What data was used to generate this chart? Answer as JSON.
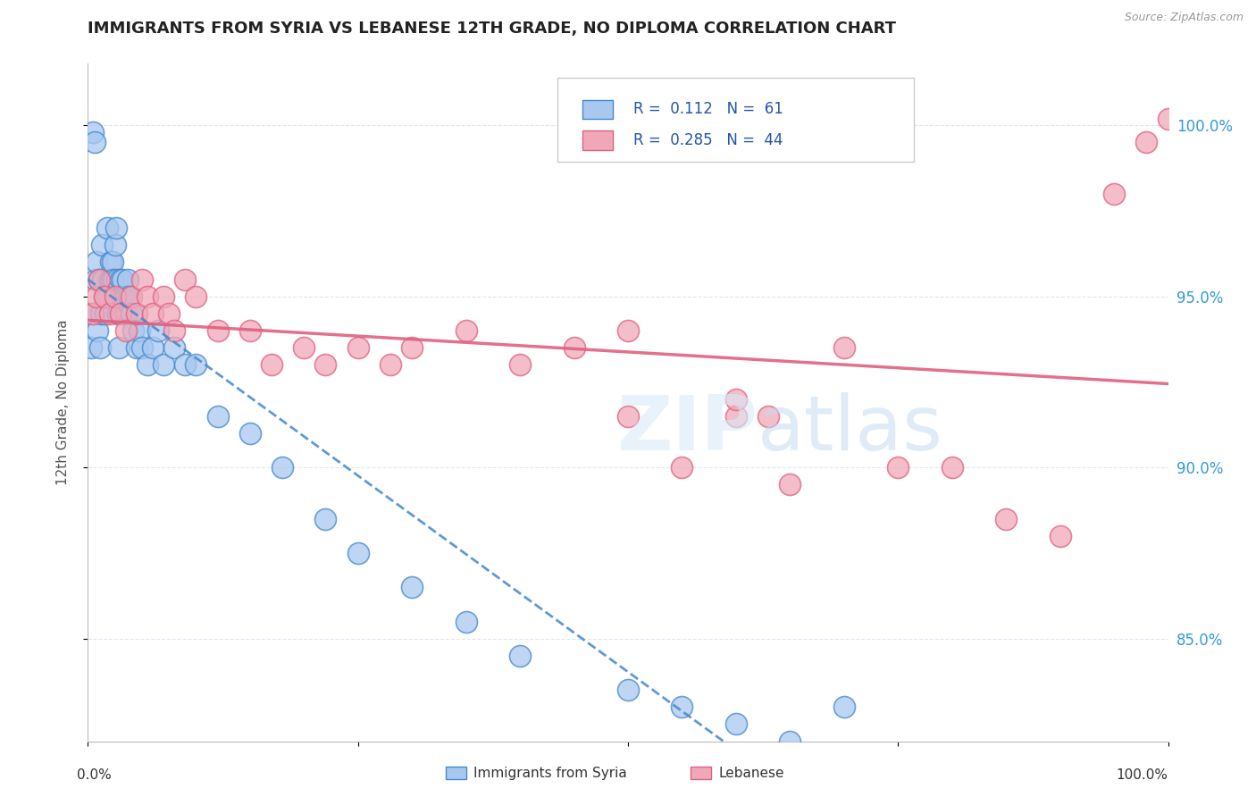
{
  "title": "IMMIGRANTS FROM SYRIA VS LEBANESE 12TH GRADE, NO DIPLOMA CORRELATION CHART",
  "source": "Source: ZipAtlas.com",
  "ylabel": "12th Grade, No Diploma",
  "legend_label_1": "Immigrants from Syria",
  "legend_label_2": "Lebanese",
  "r1": 0.112,
  "n1": 61,
  "r2": 0.285,
  "n2": 44,
  "color_syria": "#A8C8F0",
  "color_lebanon": "#F0A8B8",
  "color_syria_line": "#4488CC",
  "color_lebanon_line": "#E06080",
  "xlim": [
    0.0,
    100.0
  ],
  "ylim": [
    82.0,
    101.5
  ],
  "ytick_values": [
    85.0,
    90.0,
    95.0,
    100.0
  ],
  "syria_x": [
    0.3,
    0.4,
    0.5,
    0.6,
    0.7,
    0.8,
    0.9,
    1.0,
    1.1,
    1.2,
    1.3,
    1.4,
    1.5,
    1.6,
    1.7,
    1.8,
    1.9,
    2.0,
    2.1,
    2.2,
    2.3,
    2.4,
    2.5,
    2.6,
    2.7,
    2.8,
    2.9,
    3.0,
    3.1,
    3.2,
    3.3,
    3.4,
    3.5,
    3.6,
    3.7,
    3.8,
    4.0,
    4.2,
    4.5,
    4.8,
    5.0,
    5.5,
    6.0,
    6.5,
    7.0,
    8.0,
    9.0,
    10.0,
    12.0,
    15.0,
    18.0,
    22.0,
    25.0,
    30.0,
    35.0,
    40.0,
    50.0,
    55.0,
    60.0,
    65.0,
    70.0
  ],
  "syria_y": [
    93.5,
    94.5,
    99.8,
    99.5,
    95.5,
    96.0,
    94.0,
    95.5,
    93.5,
    94.5,
    96.5,
    95.5,
    95.0,
    94.5,
    95.0,
    97.0,
    95.0,
    95.5,
    96.0,
    95.5,
    96.0,
    95.5,
    96.5,
    97.0,
    95.5,
    94.5,
    93.5,
    95.5,
    95.0,
    95.5,
    95.0,
    94.5,
    95.0,
    94.5,
    95.5,
    95.0,
    94.5,
    94.0,
    93.5,
    94.0,
    93.5,
    93.0,
    93.5,
    94.0,
    93.0,
    93.5,
    93.0,
    93.0,
    91.5,
    91.0,
    90.0,
    88.5,
    87.5,
    86.5,
    85.5,
    84.5,
    83.5,
    83.0,
    82.5,
    82.0,
    83.0
  ],
  "lebanon_x": [
    0.5,
    0.8,
    1.0,
    1.5,
    2.0,
    2.5,
    3.0,
    3.5,
    4.0,
    4.5,
    5.0,
    5.5,
    6.0,
    7.0,
    7.5,
    8.0,
    9.0,
    10.0,
    12.0,
    15.0,
    17.0,
    20.0,
    22.0,
    25.0,
    28.0,
    30.0,
    35.0,
    40.0,
    45.0,
    50.0,
    55.0,
    60.0,
    65.0,
    70.0,
    75.0,
    80.0,
    85.0,
    90.0,
    95.0,
    98.0,
    100.0,
    50.0,
    60.0,
    63.0
  ],
  "lebanon_y": [
    94.5,
    95.0,
    95.5,
    95.0,
    94.5,
    95.0,
    94.5,
    94.0,
    95.0,
    94.5,
    95.5,
    95.0,
    94.5,
    95.0,
    94.5,
    94.0,
    95.5,
    95.0,
    94.0,
    94.0,
    93.0,
    93.5,
    93.0,
    93.5,
    93.0,
    93.5,
    94.0,
    93.0,
    93.5,
    94.0,
    90.0,
    91.5,
    89.5,
    93.5,
    90.0,
    90.0,
    88.5,
    88.0,
    98.0,
    99.5,
    100.2,
    91.5,
    92.0,
    91.5
  ]
}
